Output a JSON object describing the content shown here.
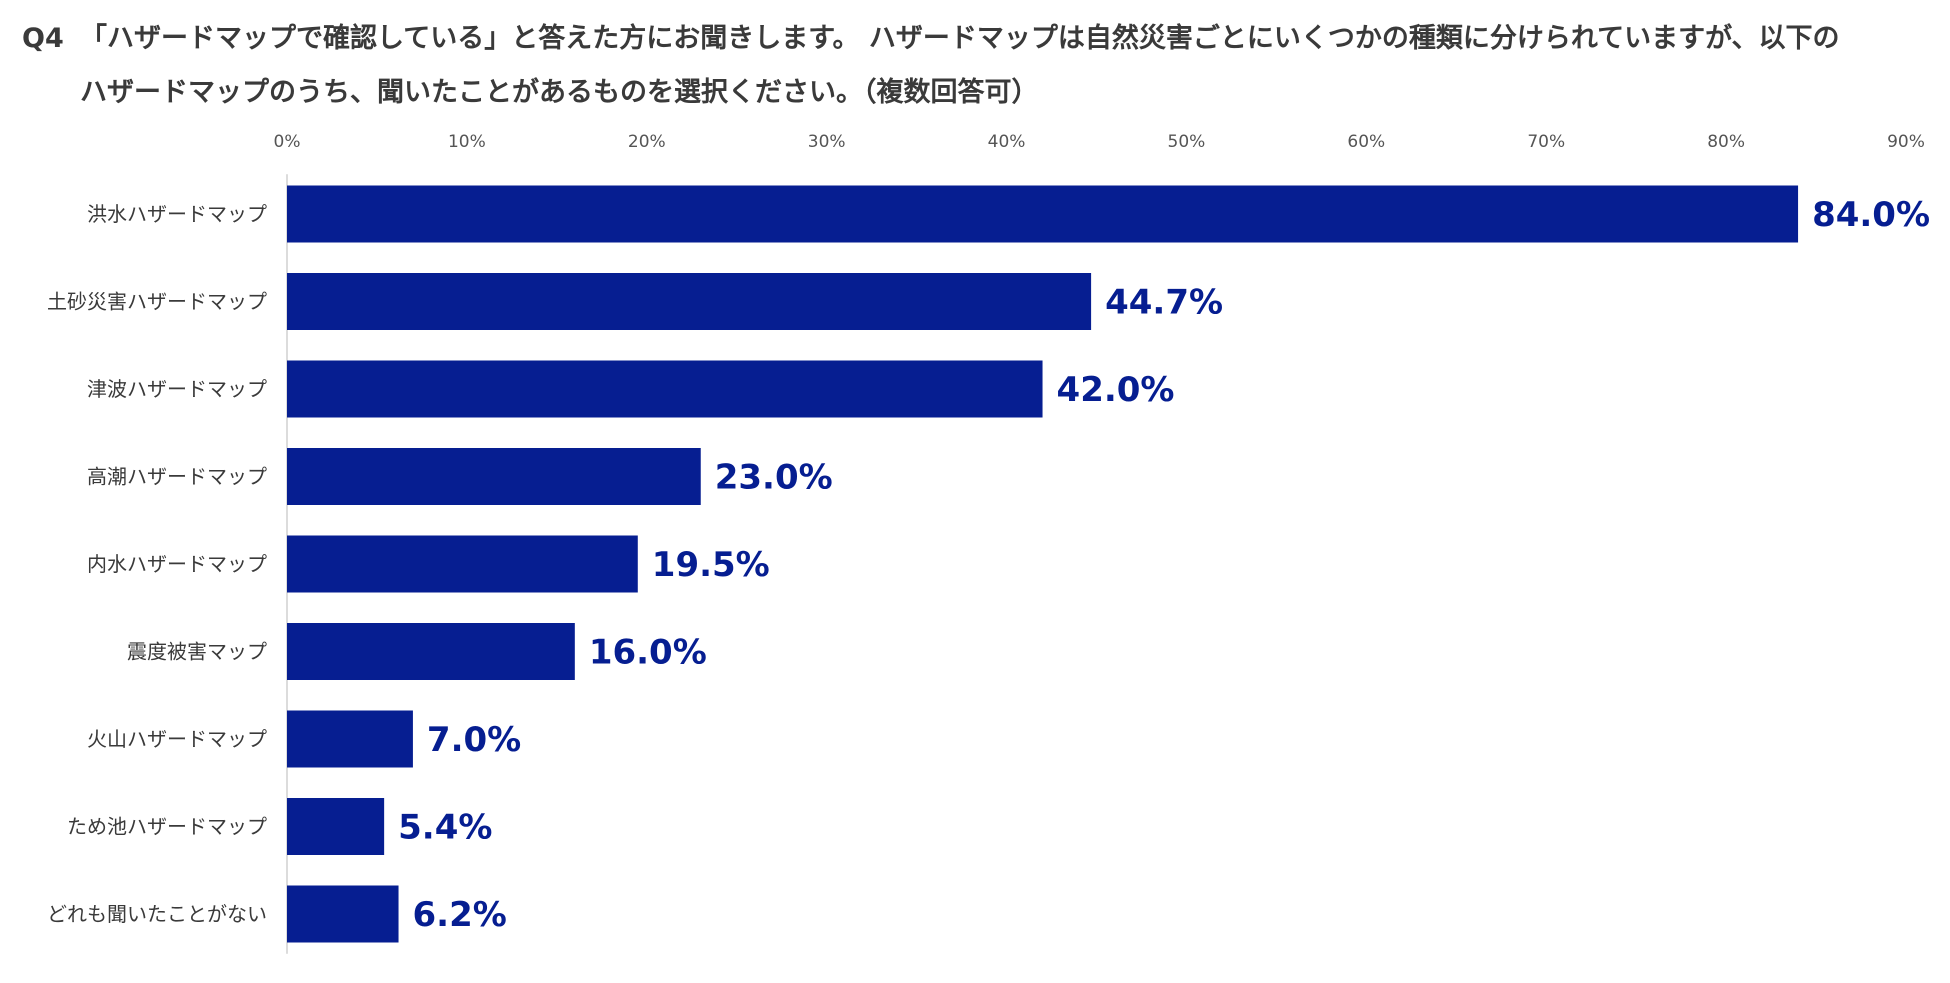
{
  "question": {
    "number": "Q4",
    "line1": "「ハザードマップで確認している」と答えた方にお聞きします。 ハザードマップは自然災害ごとにいくつかの種類に分けられていますが、以下の",
    "line2": "ハザードマップのうち、聞いたことがあるものを選択ください。（複数回答可）"
  },
  "chart_data": {
    "type": "bar",
    "orientation": "horizontal",
    "categories": [
      "洪水ハザードマップ",
      "土砂災害ハザードマップ",
      "津波ハザードマップ",
      "高潮ハザードマップ",
      "内水ハザードマップ",
      "震度被害マップ",
      "火山ハザードマップ",
      "ため池ハザードマップ",
      "どれも聞いたことがない"
    ],
    "values": [
      84.0,
      44.7,
      42.0,
      23.0,
      19.5,
      16.0,
      7.0,
      5.4,
      6.2
    ],
    "value_labels": [
      "84.0%",
      "44.7%",
      "42.0%",
      "23.0%",
      "19.5%",
      "16.0%",
      "7.0%",
      "5.4%",
      "6.2%"
    ],
    "xlim": [
      0,
      90
    ],
    "xticks": [
      "0%",
      "10%",
      "20%",
      "30%",
      "40%",
      "50%",
      "60%",
      "70%",
      "80%",
      "90%"
    ],
    "axis_position": "top",
    "grid": false,
    "bar_color": "#061E91",
    "label_color": "#061E91"
  }
}
